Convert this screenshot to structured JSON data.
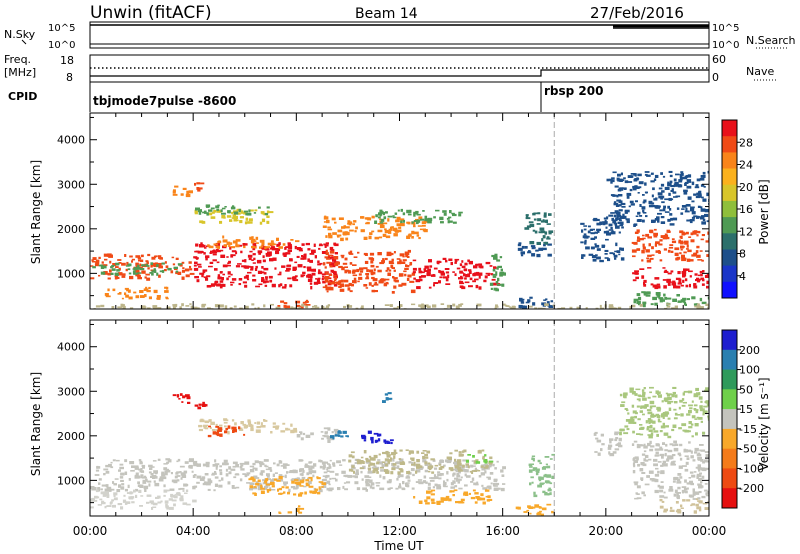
{
  "header": {
    "station": "Unwin (fitACF)",
    "beam": "Beam 14",
    "date": "27/Feb/2016"
  },
  "side_labels": {
    "nsky": "N.Sky",
    "freq_top": "Freq.",
    "freq_unit": "[MHz]",
    "cpid": "CPID",
    "nsearch": "N.Search",
    "nave": "Nave"
  },
  "strip_ticks": {
    "nsky_left": [
      "10^5",
      "10^0"
    ],
    "nsky_right": [
      "10^5",
      "10^0"
    ],
    "freq_left": [
      "18",
      "8"
    ],
    "nave_right": [
      "60",
      "0"
    ]
  },
  "cpid_labels": [
    "tbjmode7pulse -8600",
    "rbsp 200"
  ],
  "chart_data": [
    {
      "type": "heatmap",
      "title": "",
      "xlabel": "",
      "ylabel": "Slant Range [km]",
      "colorbar_label": "Power [dB]",
      "colorbar_ticks": [
        "28",
        "24",
        "20",
        "16",
        "12",
        "8",
        "4"
      ],
      "colorbar_colors": [
        "#e8101a",
        "#f04a16",
        "#f9841a",
        "#fbb11d",
        "#d8c52a",
        "#8fbf3b",
        "#4f9a54",
        "#2b6f6b",
        "#1d4f8a",
        "#1a35c8",
        "#1010ff"
      ],
      "x_range_hours": [
        0,
        24
      ],
      "ylim": [
        200,
        4600
      ],
      "y_ticks": [
        "4000",
        "3000",
        "2000",
        "1000"
      ],
      "x_ticks": [
        "00:00",
        "04:00",
        "08:00",
        "12:00",
        "16:00",
        "20:00",
        "00:00"
      ],
      "regions": [
        {
          "t0": 0.0,
          "t1": 4.0,
          "r0": 900,
          "r1": 1450,
          "level": "24",
          "color": "#f04a16"
        },
        {
          "t0": 0.5,
          "t1": 3.0,
          "r0": 450,
          "r1": 700,
          "level": "24",
          "color": "#f9841a"
        },
        {
          "t0": 0.0,
          "t1": 3.5,
          "r0": 1000,
          "r1": 1250,
          "level": "12",
          "color": "#4f9a54"
        },
        {
          "t0": 4.0,
          "t1": 9.5,
          "r0": 700,
          "r1": 1700,
          "level": "28",
          "color": "#e8101a"
        },
        {
          "t0": 4.5,
          "t1": 8.0,
          "r0": 1600,
          "r1": 1850,
          "level": "20",
          "color": "#f9841a"
        },
        {
          "t0": 4.0,
          "t1": 7.0,
          "r0": 2150,
          "r1": 2450,
          "level": "16",
          "color": "#d8c52a"
        },
        {
          "t0": 4.0,
          "t1": 7.0,
          "r0": 2350,
          "r1": 2550,
          "level": "12",
          "color": "#4f9a54"
        },
        {
          "t0": 3.2,
          "t1": 3.9,
          "r0": 2750,
          "r1": 3000,
          "level": "20",
          "color": "#f9841a"
        },
        {
          "t0": 4.0,
          "t1": 4.3,
          "r0": 2900,
          "r1": 3100,
          "level": "24",
          "color": "#f04a16"
        },
        {
          "t0": 9.0,
          "t1": 12.5,
          "r0": 600,
          "r1": 1550,
          "level": "24",
          "color": "#f04a16"
        },
        {
          "t0": 9.0,
          "t1": 13.0,
          "r0": 1800,
          "r1": 2300,
          "level": "20",
          "color": "#f9841a"
        },
        {
          "t0": 11.0,
          "t1": 14.5,
          "r0": 2150,
          "r1": 2450,
          "level": "12",
          "color": "#4f9a54"
        },
        {
          "t0": 12.5,
          "t1": 15.8,
          "r0": 700,
          "r1": 1350,
          "level": "28",
          "color": "#e8101a"
        },
        {
          "t0": 15.5,
          "t1": 16.0,
          "r0": 600,
          "r1": 1500,
          "level": "12",
          "color": "#4f9a54"
        },
        {
          "t0": 16.5,
          "t1": 17.8,
          "r0": 1400,
          "r1": 1700,
          "level": "8",
          "color": "#1d4f8a"
        },
        {
          "t0": 16.8,
          "t1": 17.8,
          "r0": 1700,
          "r1": 2400,
          "level": "8",
          "color": "#2b6f6b"
        },
        {
          "t0": 19.0,
          "t1": 20.6,
          "r0": 1300,
          "r1": 2300,
          "level": "8",
          "color": "#1d4f8a"
        },
        {
          "t0": 20.0,
          "t1": 24.0,
          "r0": 2100,
          "r1": 3300,
          "level": "8",
          "color": "#1d4f8a"
        },
        {
          "t0": 21.0,
          "t1": 24.0,
          "r0": 1300,
          "r1": 2000,
          "level": "24",
          "color": "#f04a16"
        },
        {
          "t0": 21.0,
          "t1": 24.0,
          "r0": 700,
          "r1": 1150,
          "level": "28",
          "color": "#e8101a"
        },
        {
          "t0": 21.0,
          "t1": 24.0,
          "r0": 300,
          "r1": 600,
          "level": "12",
          "color": "#4f9a54"
        },
        {
          "t0": 7.2,
          "t1": 8.4,
          "r0": 250,
          "r1": 450,
          "level": "24",
          "color": "#f04a16"
        },
        {
          "t0": 16.4,
          "t1": 17.9,
          "r0": 250,
          "r1": 500,
          "level": "8",
          "color": "#1d4f8a"
        },
        {
          "t0": 0.0,
          "t1": 24.0,
          "r0": 200,
          "r1": 330,
          "level": "16",
          "color": "#bcb58a"
        }
      ]
    },
    {
      "type": "heatmap",
      "title": "",
      "xlabel": "Time UT",
      "ylabel": "Slant Range [km]",
      "colorbar_label": "Velocity [m s⁻¹]",
      "colorbar_ticks": [
        "200",
        "100",
        "50",
        "15",
        "-15",
        "-50",
        "-100",
        "-200"
      ],
      "colorbar_colors": [
        "#1e1ecf",
        "#2a7fb0",
        "#2f9a5b",
        "#6fd04a",
        "#c4c4bd",
        "#f8a82a",
        "#f47b1a",
        "#ee4a12",
        "#e61010"
      ],
      "x_range_hours": [
        0,
        24
      ],
      "ylim": [
        200,
        4600
      ],
      "y_ticks": [
        "4000",
        "3000",
        "2000",
        "1000"
      ],
      "x_ticks": [
        "00:00",
        "04:00",
        "08:00",
        "12:00",
        "16:00",
        "20:00",
        "00:00"
      ],
      "regions": [
        {
          "t0": 0.0,
          "t1": 9.5,
          "r0": 800,
          "r1": 1500,
          "level": "0",
          "color": "#c4c4bd"
        },
        {
          "t0": 0.0,
          "t1": 4.0,
          "r0": 400,
          "r1": 800,
          "level": "0",
          "color": "#d2d2cc"
        },
        {
          "t0": 9.0,
          "t1": 16.0,
          "r0": 800,
          "r1": 1500,
          "level": "0",
          "color": "#c4c4bd"
        },
        {
          "t0": 10.0,
          "t1": 15.5,
          "r0": 1200,
          "r1": 1700,
          "level": "-15",
          "color": "#bfb98a"
        },
        {
          "t0": 6.0,
          "t1": 9.0,
          "r0": 700,
          "r1": 1100,
          "level": "-50",
          "color": "#f8a82a"
        },
        {
          "t0": 4.0,
          "t1": 8.0,
          "r0": 2100,
          "r1": 2400,
          "level": "-15",
          "color": "#d8c9a0"
        },
        {
          "t0": 4.5,
          "t1": 6.0,
          "r0": 2000,
          "r1": 2250,
          "level": "-200",
          "color": "#ee4a12"
        },
        {
          "t0": 8.0,
          "t1": 9.5,
          "r0": 1900,
          "r1": 2200,
          "level": "-15",
          "color": "#c4c4bd"
        },
        {
          "t0": 10.5,
          "t1": 11.7,
          "r0": 1850,
          "r1": 2150,
          "level": "200",
          "color": "#1e1ecf"
        },
        {
          "t0": 9.0,
          "t1": 10.0,
          "r0": 1950,
          "r1": 2150,
          "level": "100",
          "color": "#2a7fb0"
        },
        {
          "t0": 3.2,
          "t1": 3.8,
          "r0": 2700,
          "r1": 3000,
          "level": "-200",
          "color": "#e61010"
        },
        {
          "t0": 4.0,
          "t1": 4.4,
          "r0": 2600,
          "r1": 2800,
          "level": "-200",
          "color": "#e61010"
        },
        {
          "t0": 11.3,
          "t1": 11.6,
          "r0": 2800,
          "r1": 3000,
          "level": "100",
          "color": "#2a7fb0"
        },
        {
          "t0": 7.3,
          "t1": 8.2,
          "r0": 250,
          "r1": 450,
          "level": "-50",
          "color": "#f8a82a"
        },
        {
          "t0": 12.5,
          "t1": 15.5,
          "r0": 500,
          "r1": 800,
          "level": "-50",
          "color": "#f8a82a"
        },
        {
          "t0": 14.5,
          "t1": 15.5,
          "r0": 1400,
          "r1": 1600,
          "level": "15",
          "color": "#6fd04a"
        },
        {
          "t0": 16.5,
          "t1": 17.9,
          "r0": 250,
          "r1": 500,
          "level": "-50",
          "color": "#f8a82a"
        },
        {
          "t0": 17.0,
          "t1": 17.9,
          "r0": 600,
          "r1": 1600,
          "level": "15",
          "color": "#8cc08a"
        },
        {
          "t0": 19.5,
          "t1": 20.5,
          "r0": 1600,
          "r1": 2100,
          "level": "-15",
          "color": "#c4c4bd"
        },
        {
          "t0": 20.5,
          "t1": 24.0,
          "r0": 2000,
          "r1": 3100,
          "level": "15",
          "color": "#a9c77e"
        },
        {
          "t0": 21.0,
          "t1": 24.0,
          "r0": 600,
          "r1": 1900,
          "level": "0",
          "color": "#c4c4bd"
        },
        {
          "t0": 22.0,
          "t1": 24.0,
          "r0": 300,
          "r1": 600,
          "level": "-15",
          "color": "#d0c29a"
        }
      ]
    }
  ]
}
